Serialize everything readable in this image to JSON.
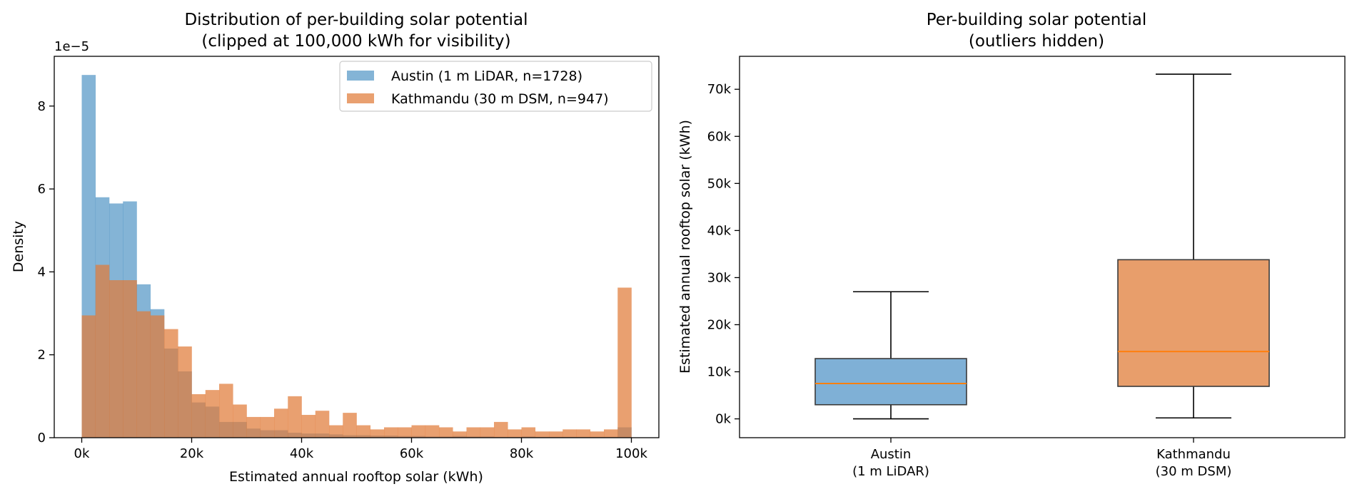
{
  "chart_data": [
    {
      "type": "histogram",
      "title_lines": [
        "Distribution of per-building solar potential",
        "(clipped at 100,000 kWh for visibility)"
      ],
      "xlabel": "Estimated annual rooftop solar (kWh)",
      "ylabel": "Density",
      "y_offset_label": "1e−5",
      "xlim": [
        -5000,
        105000
      ],
      "ylim": [
        0,
        9.2e-05
      ],
      "x_ticks": [
        0,
        20000,
        40000,
        60000,
        80000,
        100000
      ],
      "x_tick_labels": [
        "0k",
        "20k",
        "40k",
        "60k",
        "80k",
        "100k"
      ],
      "y_ticks": [
        0,
        2e-05,
        4e-05,
        6e-05,
        8e-05
      ],
      "y_tick_labels": [
        "0",
        "2",
        "4",
        "6",
        "8"
      ],
      "grid": false,
      "legend_position": "upper-right",
      "bin_start": 0,
      "bin_width": 2500,
      "series": [
        {
          "name": "Austin (1 m LiDAR, n=1728)",
          "color": "#1f77b4",
          "opacity": 0.55,
          "density": [
            8.75e-05,
            5.8e-05,
            5.65e-05,
            5.7e-05,
            3.7e-05,
            3.1e-05,
            2.15e-05,
            1.6e-05,
            8.5e-06,
            7.5e-06,
            3.8e-06,
            3.8e-06,
            2.2e-06,
            1.8e-06,
            1.8e-06,
            1.2e-06,
            1e-06,
            1e-06,
            8e-07,
            6e-07,
            6e-07,
            5e-07,
            5e-07,
            4e-07,
            4e-07,
            3e-07,
            3e-07,
            4e-07,
            3e-07,
            3e-07,
            2e-07,
            2e-07,
            3e-07,
            2e-07,
            2e-07,
            2e-07,
            2e-07,
            2e-07,
            2e-07,
            2.5e-06
          ]
        },
        {
          "name": "Kathmandu (30 m DSM, n=947)",
          "color": "#e07b39",
          "opacity": 0.72,
          "density": [
            2.95e-05,
            4.17e-05,
            3.8e-05,
            3.8e-05,
            3.05e-05,
            2.95e-05,
            2.62e-05,
            2.2e-05,
            1.05e-05,
            1.15e-05,
            1.3e-05,
            8e-06,
            5e-06,
            5e-06,
            7e-06,
            1e-05,
            5.5e-06,
            6.5e-06,
            3e-06,
            6e-06,
            3e-06,
            2e-06,
            2.5e-06,
            2.5e-06,
            3e-06,
            3e-06,
            2.5e-06,
            1.5e-06,
            2.5e-06,
            2.5e-06,
            3.8e-06,
            2e-06,
            2.5e-06,
            1.5e-06,
            1.5e-06,
            2e-06,
            2e-06,
            1.5e-06,
            2e-06,
            3.62e-05
          ]
        }
      ]
    },
    {
      "type": "box",
      "title_lines": [
        "Per-building solar potential",
        "(outliers hidden)"
      ],
      "xlabel": "",
      "ylabel": "Estimated annual rooftop solar (kWh)",
      "ylim": [
        -4000,
        77000
      ],
      "y_ticks": [
        0,
        10000,
        20000,
        30000,
        40000,
        50000,
        60000,
        70000
      ],
      "y_tick_labels": [
        "0k",
        "10k",
        "20k",
        "30k",
        "40k",
        "50k",
        "60k",
        "70k"
      ],
      "grid": false,
      "median_color": "#ff7f0e",
      "boxes": [
        {
          "label_lines": [
            "Austin",
            "(1 m LiDAR)"
          ],
          "color": "#7fb0d6",
          "whisker_low": 0,
          "q1": 3000,
          "median": 7500,
          "q3": 12800,
          "whisker_high": 27000
        },
        {
          "label_lines": [
            "Kathmandu",
            "(30 m DSM)"
          ],
          "color": "#e89e6b",
          "whisker_low": 200,
          "q1": 6900,
          "median": 14300,
          "q3": 33800,
          "whisker_high": 73200
        }
      ]
    }
  ]
}
